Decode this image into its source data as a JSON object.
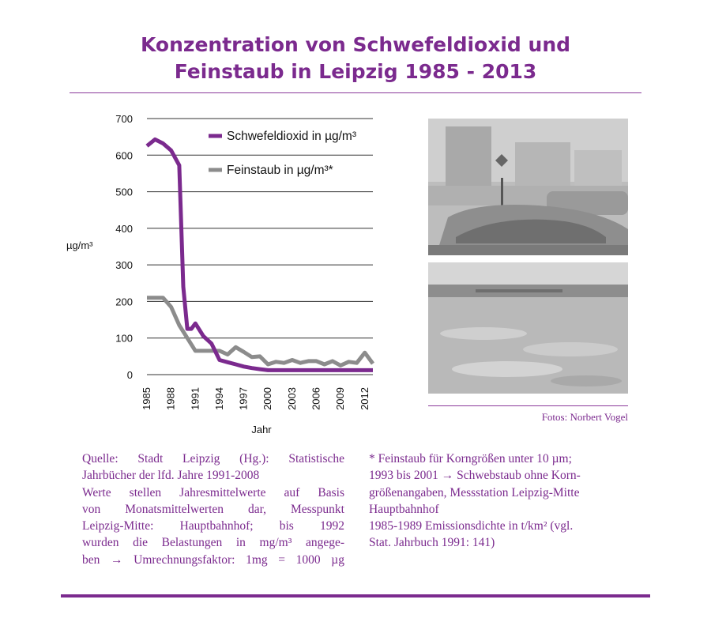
{
  "title_lines": [
    "Konzentration von Schwefeldioxid und",
    "Feinstaub in Leipzig 1985 - 2013"
  ],
  "chart_data": {
    "type": "line",
    "xlabel": "Jahr",
    "ylabel": "µg/m³",
    "xlim": [
      1985,
      2013
    ],
    "ylim": [
      0,
      700
    ],
    "yticks": [
      0,
      100,
      200,
      300,
      400,
      500,
      600,
      700
    ],
    "xticks": [
      "1985",
      "1988",
      "1991",
      "1994",
      "1997",
      "2000",
      "2003",
      "2006",
      "2009",
      "2012"
    ],
    "grid": "horizontal",
    "legend_position": "top-right",
    "series": [
      {
        "name": "Schwefeldioxid in µg/m³",
        "color": "#7b2a8e",
        "x": [
          1985,
          1986,
          1987,
          1988,
          1989,
          1989.5,
          1990,
          1990.5,
          1991,
          1992,
          1993,
          1994,
          1995,
          1996,
          1997,
          1998,
          1999,
          2000,
          2001,
          2002,
          2003,
          2004,
          2005,
          2006,
          2007,
          2008,
          2009,
          2010,
          2011,
          2012,
          2013
        ],
        "y": [
          625,
          643,
          632,
          613,
          572,
          240,
          125,
          125,
          140,
          105,
          85,
          40,
          34,
          28,
          22,
          18,
          15,
          12,
          12,
          12,
          12,
          12,
          12,
          12,
          12,
          12,
          12,
          12,
          12,
          12,
          12
        ]
      },
      {
        "name": "Feinstaub in µg/m³*",
        "color": "#8c8c8c",
        "x": [
          1985,
          1986,
          1987,
          1988,
          1989,
          1990,
          1991,
          1992,
          1993,
          1994,
          1995,
          1996,
          1997,
          1998,
          1999,
          2000,
          2001,
          2002,
          2003,
          2004,
          2005,
          2006,
          2007,
          2008,
          2009,
          2010,
          2011,
          2012,
          2013
        ],
        "y": [
          210,
          210,
          210,
          185,
          135,
          100,
          65,
          65,
          65,
          65,
          55,
          75,
          62,
          48,
          50,
          28,
          35,
          32,
          40,
          32,
          37,
          37,
          28,
          37,
          25,
          35,
          32,
          60,
          30
        ]
      }
    ]
  },
  "photo_credit": "Fotos: Norbert Vogel",
  "source_lines": [
    "Quelle: Stadt Leipzig (Hg.): Statistische",
    "Jahrbücher der lfd. Jahre 1991-2008",
    "Werte stellen Jahresmittelwerte auf Basis",
    "von Monatsmittelwerten dar, Messpunkt",
    "Leipzig-Mitte: Hauptbahnhof; bis 1992",
    "wurden die Belastungen in mg/m³ angege-",
    "ben → Umrechnungsfaktor: 1mg = 1000 µg"
  ],
  "note_lines": [
    "* Feinstaub für Korngrößen unter 10 µm;",
    "1993 bis 2001 → Schwebstaub ohne Korn-",
    "größenangaben, Messstation Leipzig-Mitte",
    "Hauptbahnhof",
    "1985-1989 Emissionsdichte in t/km² (vgl.",
    "Stat. Jahrbuch 1991: 141)"
  ]
}
